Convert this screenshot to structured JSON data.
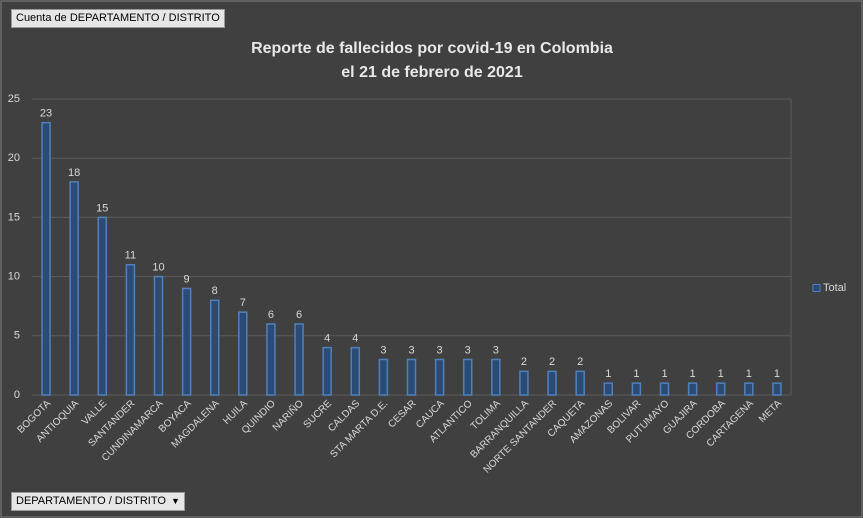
{
  "chart_data": {
    "type": "bar",
    "pivot_value_button": "Cuenta de DEPARTAMENTO / DISTRITO",
    "pivot_axis_button": "DEPARTAMENTO / DISTRITO",
    "title": [
      "Reporte de fallecidos por covid-19 en Colombia",
      "el 21 de febrero de 2021"
    ],
    "categories": [
      "BOGOTA",
      "ANTIOQUIA",
      "VALLE",
      "SANTANDER",
      "CUNDINAMARCA",
      "BOYACA",
      "MAGDALENA",
      "HUILA",
      "QUINDIO",
      "NARIÑO",
      "SUCRE",
      "CALDAS",
      "STA MARTA D.E.",
      "CESAR",
      "CAUCA",
      "ATLANTICO",
      "TOLIMA",
      "BARRANQUILLA",
      "NORTE SANTANDER",
      "CAQUETA",
      "AMAZONAS",
      "BOLIVAR",
      "PUTUMAYO",
      "GUAJIRA",
      "CORDOBA",
      "CARTAGENA",
      "META"
    ],
    "series": [
      {
        "name": "Total",
        "color": "#4f81bd",
        "values": [
          23,
          18,
          15,
          11,
          10,
          9,
          8,
          7,
          6,
          6,
          4,
          4,
          3,
          3,
          3,
          3,
          3,
          2,
          2,
          2,
          1,
          1,
          1,
          1,
          1,
          1,
          1
        ]
      }
    ],
    "ylim": [
      0,
      25
    ],
    "yticks": [
      0,
      5,
      10,
      15,
      20,
      25
    ],
    "grid": true,
    "legend": "right"
  }
}
